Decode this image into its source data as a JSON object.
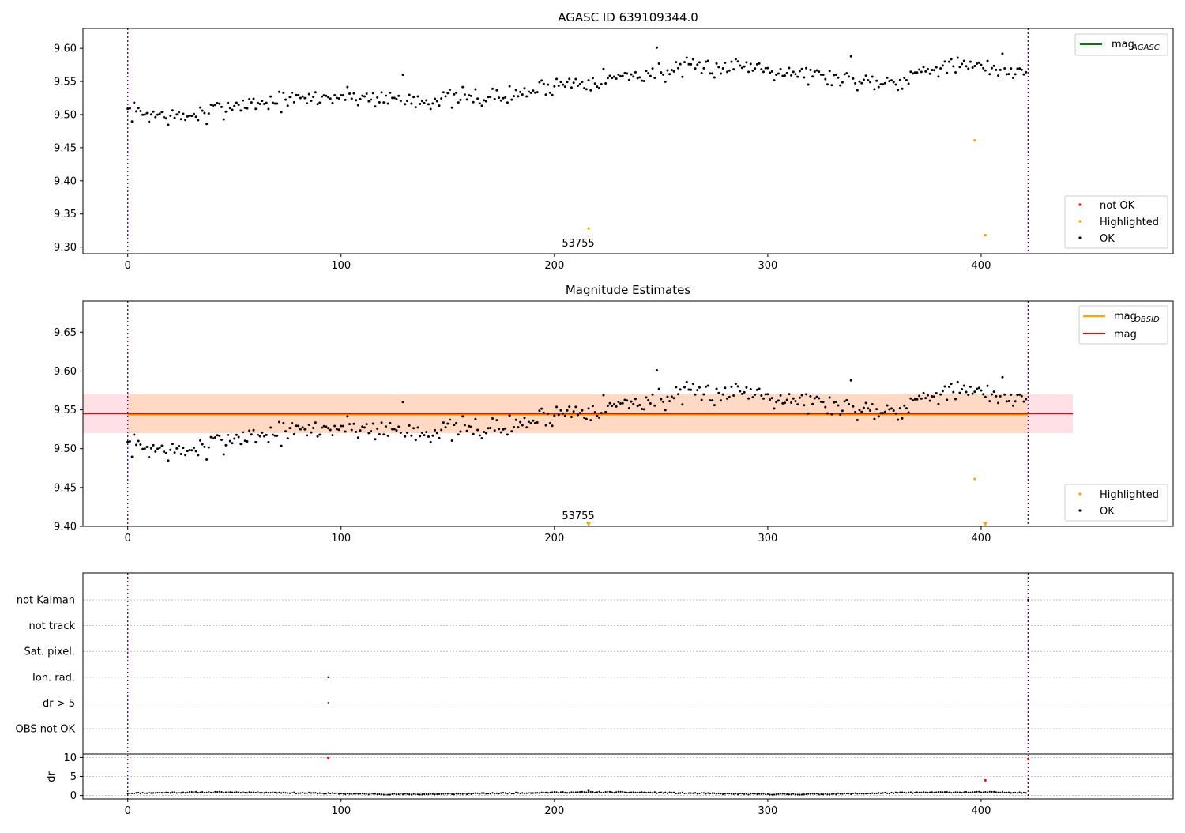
{
  "chart_data": [
    {
      "type": "scatter",
      "title": "AGASC ID 639109344.0",
      "xlim": [
        -21,
        490
      ],
      "ylim": [
        9.29,
        9.63
      ],
      "x_ticks": [
        0,
        100,
        200,
        300,
        400
      ],
      "y_ticks": [
        9.3,
        9.35,
        9.4,
        9.45,
        9.5,
        9.55,
        9.6
      ],
      "y_tick_labels": [
        "9.30",
        "9.35",
        "9.40",
        "9.45",
        "9.50",
        "9.55",
        "9.60"
      ],
      "obs_boundaries": [
        0,
        422
      ],
      "annotations": [
        {
          "text": "53755",
          "x": 211,
          "y": 9.305
        }
      ],
      "line_legend": [
        {
          "label": "mag",
          "subscript": "AGASC",
          "color": "#008000"
        }
      ],
      "point_legend": [
        {
          "label": "not OK",
          "color": "#ff0000"
        },
        {
          "label": "Highlighted",
          "color": "#ffa500"
        },
        {
          "label": "OK",
          "color": "#000000"
        }
      ],
      "highlighted_points": [
        {
          "x": 216,
          "y": 9.328
        },
        {
          "x": 397,
          "y": 9.461
        },
        {
          "x": 402,
          "y": 9.318
        }
      ],
      "ok_series": {
        "n": 422,
        "trend_knots": [
          [
            0,
            9.505
          ],
          [
            25,
            9.495
          ],
          [
            50,
            9.515
          ],
          [
            100,
            9.528
          ],
          [
            140,
            9.522
          ],
          [
            180,
            9.528
          ],
          [
            200,
            9.545
          ],
          [
            260,
            9.568
          ],
          [
            290,
            9.575
          ],
          [
            310,
            9.565
          ],
          [
            340,
            9.552
          ],
          [
            360,
            9.55
          ],
          [
            380,
            9.575
          ],
          [
            400,
            9.57
          ],
          [
            422,
            9.565
          ]
        ],
        "noise": 0.012,
        "seed": 7,
        "outliers": [
          {
            "x": 129,
            "y": 9.56
          },
          {
            "x": 248,
            "y": 9.601
          },
          {
            "x": 410,
            "y": 9.592
          },
          {
            "x": 37,
            "y": 9.486
          },
          {
            "x": 339,
            "y": 9.588
          }
        ]
      }
    },
    {
      "type": "scatter",
      "title": "Magnitude Estimates",
      "xlim": [
        -21,
        490
      ],
      "ylim": [
        9.4,
        9.69
      ],
      "x_ticks": [
        0,
        100,
        200,
        300,
        400
      ],
      "y_ticks": [
        9.4,
        9.45,
        9.5,
        9.55,
        9.6,
        9.65
      ],
      "y_tick_labels": [
        "9.40",
        "9.45",
        "9.50",
        "9.55",
        "9.60",
        "9.65"
      ],
      "obs_boundaries": [
        0,
        422
      ],
      "annotations": [
        {
          "text": "53755",
          "x": 211,
          "y": 9.408
        }
      ],
      "mag_line": {
        "y": 9.545,
        "band": [
          9.52,
          9.57
        ],
        "x_range": [
          -21,
          443
        ],
        "color": "#ff0000",
        "band_color": "#ffe0e6"
      },
      "mag_obsid_line": {
        "y": 9.544,
        "band": [
          9.52,
          9.57
        ],
        "x_range": [
          0,
          422
        ],
        "color": "#ffa500",
        "band_color": "#ffd9c4"
      },
      "line_legend": [
        {
          "label": "mag",
          "subscript": "OBSID",
          "color": "#ffa500"
        },
        {
          "label": "mag",
          "subscript": "",
          "color": "#ff0000"
        }
      ],
      "point_legend": [
        {
          "label": "Highlighted",
          "color": "#ffa500"
        },
        {
          "label": "OK",
          "color": "#000000"
        }
      ],
      "highlighted_points": [
        {
          "x": 397,
          "y": 9.461
        }
      ],
      "highlighted_markers_bottom": [
        {
          "x": 216,
          "y": 9.4
        },
        {
          "x": 402,
          "y": 9.4
        }
      ]
    },
    {
      "type": "scatter",
      "title": "",
      "xlim": [
        -21,
        490
      ],
      "x_ticks": [
        0,
        100,
        200,
        300,
        400
      ],
      "flags": [
        "not Kalman",
        "not track",
        "Sat. pixel.",
        "Ion. rad.",
        "dr > 5",
        "OBS not OK"
      ],
      "flag_points": [
        {
          "flag": "Ion. rad.",
          "x": 94
        },
        {
          "flag": "dr > 5",
          "x": 94
        },
        {
          "flag": "not Kalman",
          "x": 422
        }
      ],
      "obs_boundaries": [
        0,
        422
      ],
      "dr_axis": {
        "ylabel": "dr",
        "ylim": [
          -0.5,
          10.5
        ],
        "y_ticks": [
          0,
          5,
          10
        ],
        "y_tick_labels": [
          "0",
          "5",
          "10"
        ]
      },
      "dr_outliers": [
        {
          "x": 94,
          "y": 9.8,
          "color": "#ff0000"
        },
        {
          "x": 402,
          "y": 4.0,
          "color": "#ff0000"
        },
        {
          "x": 422,
          "y": 9.6,
          "color": "#ff0000"
        },
        {
          "x": 216,
          "y": 1.4,
          "color": "#000000"
        }
      ],
      "dr_series": {
        "n": 422,
        "base": 0.6,
        "amp": 0.45,
        "seed": 11
      }
    }
  ]
}
